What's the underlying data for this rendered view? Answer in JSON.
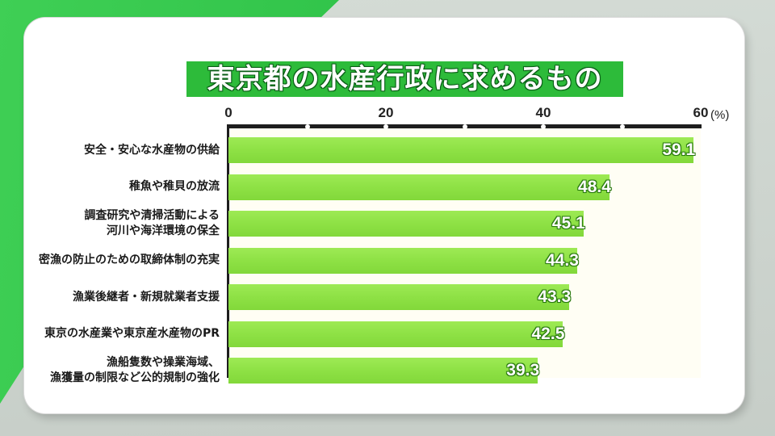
{
  "chart_data": {
    "type": "bar",
    "orientation": "horizontal",
    "title": "東京都の水産行政に求めるもの",
    "unit": "(%)",
    "xlim": [
      0,
      60
    ],
    "ticks": [
      {
        "value": 0,
        "label": "0"
      },
      {
        "value": 20,
        "label": "20"
      },
      {
        "value": 40,
        "label": "40"
      },
      {
        "value": 60,
        "label": "60"
      }
    ],
    "minor_ticks": [
      10,
      20,
      30,
      40,
      50
    ],
    "categories": [
      "安全・安心な水産物の供給",
      "稚魚や稚貝の放流",
      "調査研究や清掃活動による\n河川や海洋環境の保全",
      "密漁の防止のための取締体制の充実",
      "漁業後継者・新規就業者支援",
      "東京の水産業や東京産水産物のPR",
      "漁船隻数や操業海域、\n漁獲量の制限など公的規制の強化"
    ],
    "values": [
      59.1,
      48.4,
      45.1,
      44.3,
      43.3,
      42.5,
      39.3
    ],
    "value_labels": [
      "59.1",
      "48.4",
      "45.1",
      "44.3",
      "43.3",
      "42.5",
      "39.3"
    ],
    "colors": {
      "bar": "#8ee145",
      "title_bg": "#2dbb3a"
    }
  }
}
